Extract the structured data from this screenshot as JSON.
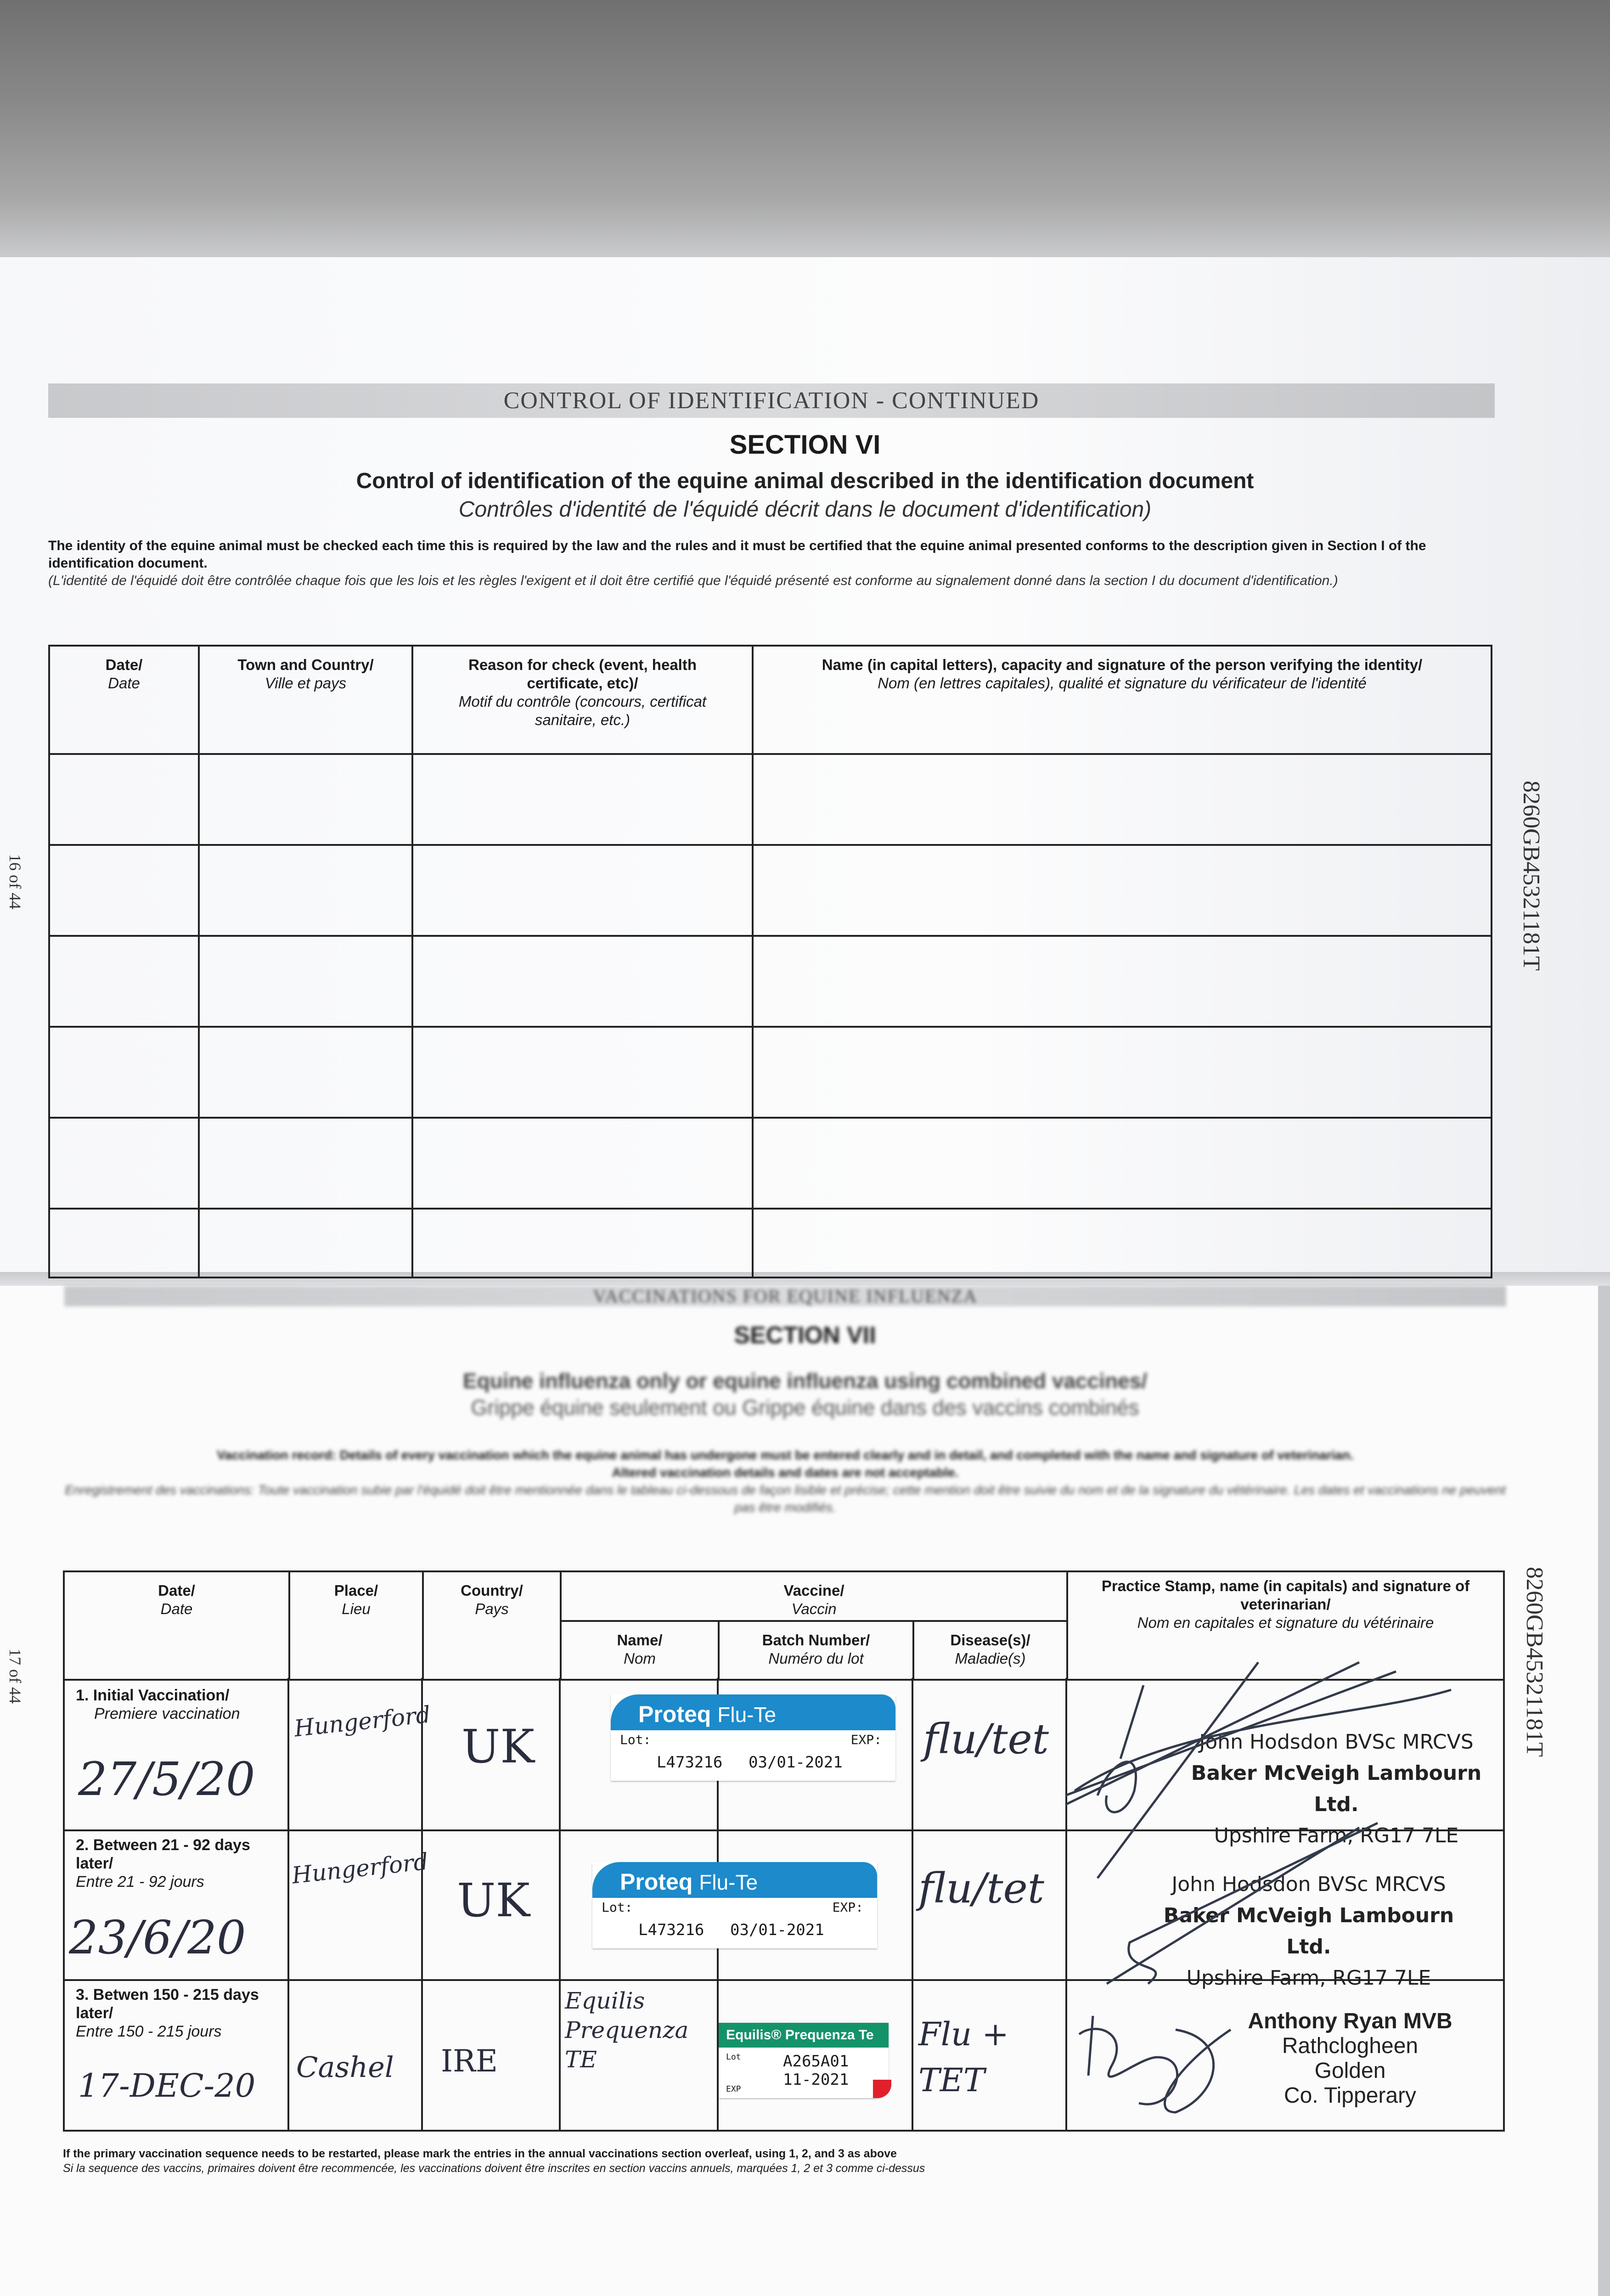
{
  "page_top": {
    "banner": "CONTROL OF IDENTIFICATION - CONTINUED",
    "section": "SECTION VI",
    "title_en": "Control of identification of the equine animal described in the identification document",
    "title_fr": "Contrôles d'identité de l'équidé décrit dans le document d'identification)",
    "intro_en": "The identity of the equine animal must be checked each time this is required by the law and the rules and it must be certified that the equine animal presented conforms to the description given in Section I of the identification document.",
    "intro_fr": "(L'identité de l'équidé doit être contrôlée chaque fois que les lois et les règles l'exigent et il doit être certifié que l'équidé présenté est conforme au signalement donné dans la section I du document d'identification.)",
    "page_number": "16 of 44",
    "passport_number": "8260GB45321181T",
    "columns": [
      {
        "en": "Date/",
        "fr": "Date"
      },
      {
        "en": "Town and Country/",
        "fr": "Ville et pays"
      },
      {
        "en": "Reason for check (event, health certificate, etc)/",
        "fr": "Motif du contrôle (concours, certificat sanitaire, etc.)"
      },
      {
        "en": "Name (in capital letters), capacity and signature of the person verifying the identity/",
        "fr": "Nom (en lettres capitales), qualité et signature du vérificateur de l'identité"
      }
    ]
  },
  "page_bottom": {
    "banner": "VACCINATIONS FOR EQUINE INFLUENZA",
    "section": "SECTION VII",
    "title_en": "Equine influenza only or equine influenza using combined vaccines/",
    "title_fr": "Grippe équine seulement ou Grippe équine dans des vaccins combinés",
    "intro_en_1": "Vaccination record: Details of every vaccination which the equine animal has undergone must be entered clearly and in detail, and completed with the name and signature of veterinarian.",
    "intro_en_2": "Altered vaccination details and dates are not acceptable.",
    "intro_fr": "Enregistrement des vaccinations: Toute vaccination subie par l'équidé doit être mentionnée dans le tableau ci-dessous de façon lisible et précise; cette mention doit être suivie du nom et de la signature du vétérinaire. Les dates et vaccinations ne peuvent pas être modifiés.",
    "page_number": "17 of 44",
    "passport_number": "8260GB45321181T",
    "headers": {
      "date": {
        "en": "Date/",
        "fr": "Date"
      },
      "place": {
        "en": "Place/",
        "fr": "Lieu"
      },
      "country": {
        "en": "Country/",
        "fr": "Pays"
      },
      "vaccine": {
        "en": "Vaccine/",
        "fr": "Vaccin"
      },
      "name": {
        "en": "Name/",
        "fr": "Nom"
      },
      "batch": {
        "en": "Batch Number/",
        "fr": "Numéro du lot"
      },
      "disease": {
        "en": "Disease(s)/",
        "fr": "Maladie(s)"
      },
      "stamp": {
        "en": "Practice Stamp, name (in capitals) and signature of veterinarian/",
        "fr": "Nom en capitales et signature du vétérinaire"
      }
    },
    "rows": [
      {
        "label_en": "1. Initial Vaccination/",
        "label_fr": "Premiere vaccination",
        "date": "27/5/20",
        "place": "Hungerford",
        "country": "UK",
        "sticker": {
          "brand": "Proteq",
          "product": "Flu-Te",
          "lot_label": "Lot:",
          "exp_label": "EXP:",
          "lot": "L473216",
          "exp": "03/01-2021"
        },
        "disease": "flu/tet",
        "stamp": [
          "John Hodsdon BVSc MRCVS",
          "Baker McVeigh Lambourn Ltd.",
          "Upshire Farm, RG17 7LE"
        ]
      },
      {
        "label_en": "2. Between 21 - 92 days later/",
        "label_fr": "Entre 21 - 92 jours",
        "date": "23/6/20",
        "place": "Hungerford",
        "country": "UK",
        "sticker": {
          "brand": "Proteq",
          "product": "Flu-Te",
          "lot_label": "Lot:",
          "exp_label": "EXP:",
          "lot": "L473216",
          "exp": "03/01-2021"
        },
        "disease": "flu/tet",
        "stamp": [
          "John Hodsdon BVSc MRCVS",
          "Baker McVeigh Lambourn Ltd.",
          "Upshire Farm, RG17 7LE"
        ]
      },
      {
        "label_en": "3. Betwen 150 - 215 days later/",
        "label_fr": "Entre 150 - 215 jours",
        "date": "17-DEC-20",
        "place": "Cashel",
        "country": "IRE",
        "name_hand": "Equilis Prequenza TE",
        "sticker": {
          "product": "Equilis® Prequenza Te",
          "lot_label": "Lot",
          "exp_label": "EXP",
          "lot": "A265A01",
          "exp": "11-2021"
        },
        "disease": "Flu + TET",
        "stamp": [
          "Anthony Ryan MVB",
          "Rathclogheen",
          "Golden",
          "Co. Tipperary"
        ]
      }
    ],
    "footer_en": "If the primary vaccination sequence needs to be restarted, please mark the entries in the annual vaccinations section overleaf, using 1, 2, and 3 as above",
    "footer_fr": "Si la sequence des vaccins, primaires doivent être recommencée, les vaccinations doivent être inscrites en section vaccins annuels, marquées 1, 2 et 3 comme ci-dessus"
  },
  "colors": {
    "proteq_blue": "#1c8acb",
    "equilis_green": "#14936a",
    "ink": "#2a2d3c"
  }
}
